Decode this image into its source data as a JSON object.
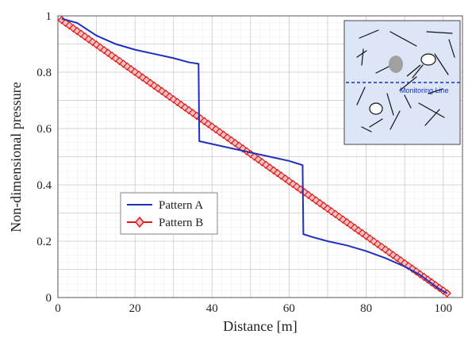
{
  "chart_data": {
    "type": "line",
    "title": "",
    "xlabel": "Distance [m]",
    "ylabel": "Non-dimensional pressure",
    "xlim": [
      0,
      105
    ],
    "ylim": [
      0,
      1
    ],
    "xticks": [
      0,
      20,
      40,
      60,
      80,
      100
    ],
    "yticks": [
      0,
      0.2,
      0.4,
      0.6,
      0.8,
      1
    ],
    "ytick_labels": [
      "0",
      "0.2",
      "0.4",
      "0.6",
      "0.8",
      "1"
    ],
    "grid": true,
    "legend_position": "lower-left",
    "series": [
      {
        "name": "Pattern A",
        "color": "#1f2fbf",
        "marker": "none",
        "points": [
          [
            1,
            0.99
          ],
          [
            5,
            0.975
          ],
          [
            10,
            0.93
          ],
          [
            15,
            0.9
          ],
          [
            20,
            0.88
          ],
          [
            25,
            0.865
          ],
          [
            30,
            0.85
          ],
          [
            34,
            0.835
          ],
          [
            36.5,
            0.83
          ],
          [
            36.7,
            0.555
          ],
          [
            40,
            0.545
          ],
          [
            45,
            0.53
          ],
          [
            50,
            0.515
          ],
          [
            55,
            0.5
          ],
          [
            60,
            0.485
          ],
          [
            63.5,
            0.47
          ],
          [
            63.7,
            0.225
          ],
          [
            66,
            0.215
          ],
          [
            70,
            0.2
          ],
          [
            75,
            0.185
          ],
          [
            80,
            0.165
          ],
          [
            85,
            0.14
          ],
          [
            90,
            0.11
          ],
          [
            94,
            0.08
          ],
          [
            97,
            0.05
          ],
          [
            99,
            0.03
          ],
          [
            101,
            0.015
          ]
        ]
      },
      {
        "name": "Pattern B",
        "color": "#e01818",
        "marker": "diamond",
        "points": [
          [
            1,
            0.985
          ],
          [
            101,
            0.015
          ]
        ],
        "marker_spacing": 1
      }
    ],
    "inset": {
      "label": "Monitoring Line",
      "background": "#dde6f7"
    }
  }
}
